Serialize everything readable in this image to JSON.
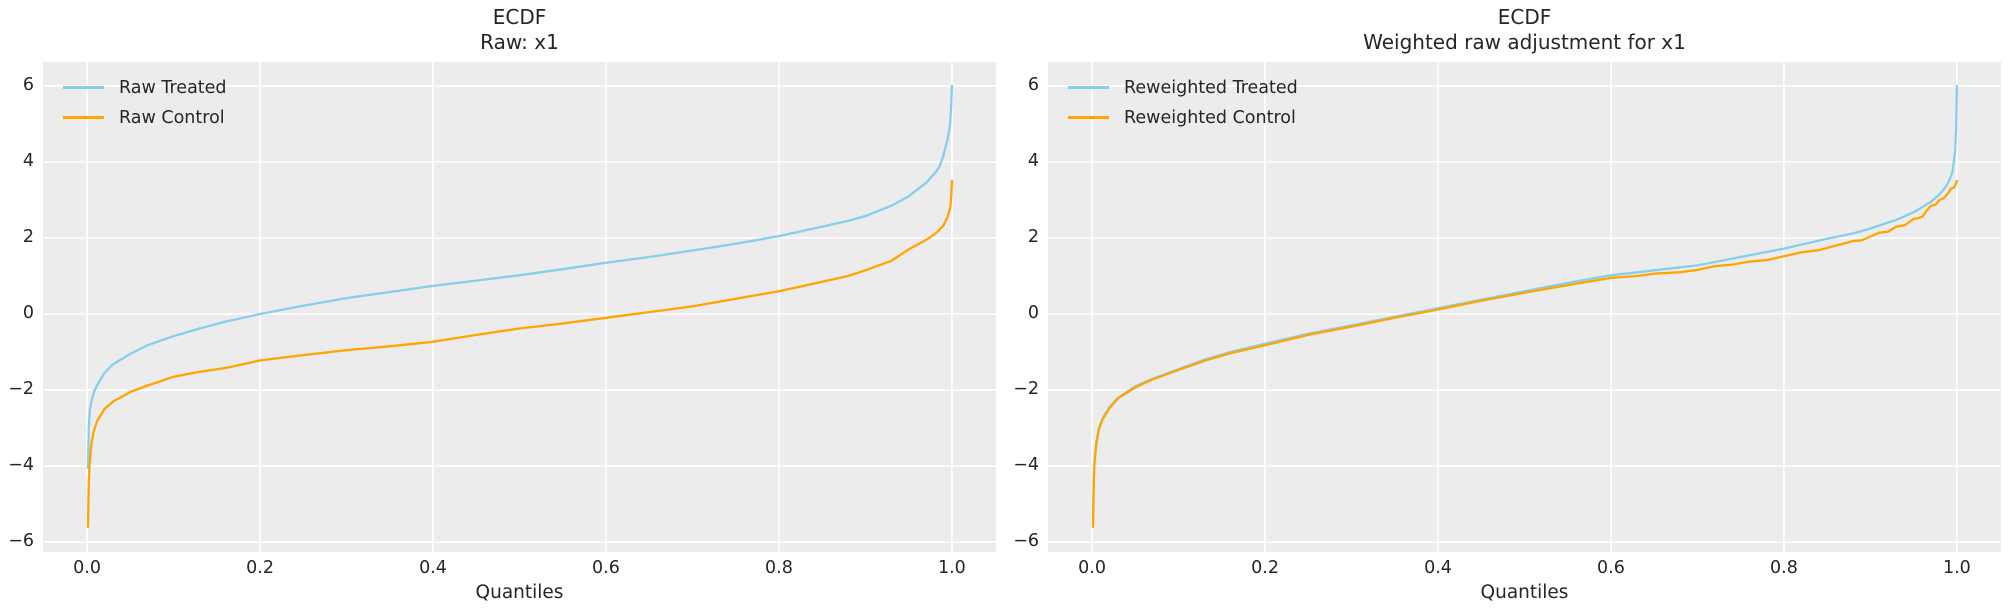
{
  "figure": {
    "background": "#ffffff",
    "plot_background": "#ececec",
    "grid_color": "#ffffff",
    "text_color": "#262626"
  },
  "chart_data": [
    {
      "type": "line",
      "title": "ECDF",
      "subtitle": "Raw: x1",
      "xlabel": "Quantiles",
      "xlim": [
        -0.051,
        1.051
      ],
      "ylim": [
        -6.26,
        6.63
      ],
      "grid": true,
      "xticks": [
        0.0,
        0.2,
        0.4,
        0.6,
        0.8,
        1.0
      ],
      "xtick_labels": [
        "0.0",
        "0.2",
        "0.4",
        "0.6",
        "0.8",
        "1.0"
      ],
      "yticks": [
        -6,
        -4,
        -2,
        0,
        2,
        4,
        6
      ],
      "ytick_labels": [
        "−6",
        "−4",
        "−2",
        "0",
        "2",
        "4",
        "6"
      ],
      "legend": {
        "position": "upper-left",
        "frame": false,
        "entries": [
          {
            "label": "Raw Treated",
            "color": "#87CEEB"
          },
          {
            "label": "Raw Control",
            "color": "#FFA500"
          }
        ]
      },
      "series": [
        {
          "name": "Raw Treated",
          "color": "#87CEEB",
          "points": [
            [
              0.001,
              -4.05
            ],
            [
              0.002,
              -3.0
            ],
            [
              0.003,
              -2.55
            ],
            [
              0.005,
              -2.3
            ],
            [
              0.008,
              -2.05
            ],
            [
              0.012,
              -1.85
            ],
            [
              0.02,
              -1.55
            ],
            [
              0.03,
              -1.32
            ],
            [
              0.05,
              -1.05
            ],
            [
              0.07,
              -0.82
            ],
            [
              0.1,
              -0.58
            ],
            [
              0.13,
              -0.38
            ],
            [
              0.16,
              -0.2
            ],
            [
              0.2,
              0.0
            ],
            [
              0.25,
              0.22
            ],
            [
              0.3,
              0.42
            ],
            [
              0.35,
              0.58
            ],
            [
              0.4,
              0.74
            ],
            [
              0.45,
              0.88
            ],
            [
              0.5,
              1.02
            ],
            [
              0.55,
              1.18
            ],
            [
              0.6,
              1.35
            ],
            [
              0.65,
              1.5
            ],
            [
              0.7,
              1.67
            ],
            [
              0.75,
              1.85
            ],
            [
              0.8,
              2.05
            ],
            [
              0.85,
              2.3
            ],
            [
              0.88,
              2.45
            ],
            [
              0.9,
              2.58
            ],
            [
              0.93,
              2.85
            ],
            [
              0.95,
              3.1
            ],
            [
              0.97,
              3.45
            ],
            [
              0.98,
              3.7
            ],
            [
              0.985,
              3.85
            ],
            [
              0.99,
              4.15
            ],
            [
              0.995,
              4.6
            ],
            [
              0.998,
              5.0
            ],
            [
              0.999,
              5.4
            ],
            [
              1.0,
              6.0
            ]
          ]
        },
        {
          "name": "Raw Control",
          "color": "#FFA500",
          "points": [
            [
              0.001,
              -5.6
            ],
            [
              0.002,
              -4.4
            ],
            [
              0.003,
              -3.9
            ],
            [
              0.005,
              -3.4
            ],
            [
              0.008,
              -3.05
            ],
            [
              0.012,
              -2.8
            ],
            [
              0.02,
              -2.5
            ],
            [
              0.03,
              -2.3
            ],
            [
              0.05,
              -2.05
            ],
            [
              0.07,
              -1.88
            ],
            [
              0.1,
              -1.65
            ],
            [
              0.13,
              -1.52
            ],
            [
              0.16,
              -1.42
            ],
            [
              0.2,
              -1.22
            ],
            [
              0.25,
              -1.08
            ],
            [
              0.3,
              -0.95
            ],
            [
              0.35,
              -0.85
            ],
            [
              0.4,
              -0.73
            ],
            [
              0.45,
              -0.55
            ],
            [
              0.5,
              -0.38
            ],
            [
              0.55,
              -0.25
            ],
            [
              0.6,
              -0.1
            ],
            [
              0.65,
              0.05
            ],
            [
              0.7,
              0.2
            ],
            [
              0.75,
              0.4
            ],
            [
              0.8,
              0.6
            ],
            [
              0.85,
              0.85
            ],
            [
              0.88,
              1.0
            ],
            [
              0.9,
              1.15
            ],
            [
              0.93,
              1.4
            ],
            [
              0.95,
              1.7
            ],
            [
              0.97,
              1.95
            ],
            [
              0.98,
              2.1
            ],
            [
              0.985,
              2.2
            ],
            [
              0.99,
              2.32
            ],
            [
              0.995,
              2.55
            ],
            [
              0.998,
              2.8
            ],
            [
              0.999,
              3.0
            ],
            [
              1.0,
              3.5
            ]
          ]
        }
      ]
    },
    {
      "type": "line",
      "title": "ECDF",
      "subtitle": "Weighted raw adjustment for x1",
      "xlabel": "Quantiles",
      "xlim": [
        -0.051,
        1.051
      ],
      "ylim": [
        -6.26,
        6.63
      ],
      "grid": true,
      "xticks": [
        0.0,
        0.2,
        0.4,
        0.6,
        0.8,
        1.0
      ],
      "xtick_labels": [
        "0.0",
        "0.2",
        "0.4",
        "0.6",
        "0.8",
        "1.0"
      ],
      "yticks": [
        -6,
        -4,
        -2,
        0,
        2,
        4,
        6
      ],
      "ytick_labels": [
        "−6",
        "−4",
        "−2",
        "0",
        "2",
        "4",
        "6"
      ],
      "legend": {
        "position": "upper-left",
        "frame": false,
        "entries": [
          {
            "label": "Reweighted Treated",
            "color": "#87CEEB"
          },
          {
            "label": "Reweighted Control",
            "color": "#FFA500"
          }
        ]
      },
      "series": [
        {
          "name": "Reweighted Treated",
          "color": "#87CEEB",
          "points": [
            [
              0.001,
              -5.55
            ],
            [
              0.002,
              -4.3
            ],
            [
              0.003,
              -3.8
            ],
            [
              0.005,
              -3.35
            ],
            [
              0.008,
              -3.0
            ],
            [
              0.012,
              -2.75
            ],
            [
              0.02,
              -2.45
            ],
            [
              0.03,
              -2.2
            ],
            [
              0.05,
              -1.9
            ],
            [
              0.07,
              -1.7
            ],
            [
              0.1,
              -1.45
            ],
            [
              0.13,
              -1.2
            ],
            [
              0.16,
              -1.0
            ],
            [
              0.2,
              -0.78
            ],
            [
              0.25,
              -0.52
            ],
            [
              0.3,
              -0.3
            ],
            [
              0.35,
              -0.07
            ],
            [
              0.4,
              0.15
            ],
            [
              0.45,
              0.38
            ],
            [
              0.5,
              0.6
            ],
            [
              0.55,
              0.82
            ],
            [
              0.6,
              1.02
            ],
            [
              0.65,
              1.15
            ],
            [
              0.7,
              1.28
            ],
            [
              0.75,
              1.5
            ],
            [
              0.8,
              1.72
            ],
            [
              0.85,
              1.98
            ],
            [
              0.88,
              2.12
            ],
            [
              0.9,
              2.25
            ],
            [
              0.93,
              2.48
            ],
            [
              0.95,
              2.68
            ],
            [
              0.97,
              2.95
            ],
            [
              0.98,
              3.15
            ],
            [
              0.985,
              3.28
            ],
            [
              0.99,
              3.45
            ],
            [
              0.995,
              3.75
            ],
            [
              0.998,
              4.3
            ],
            [
              0.999,
              4.8
            ],
            [
              1.0,
              6.0
            ]
          ]
        },
        {
          "name": "Reweighted Control",
          "color": "#FFA500",
          "points": [
            [
              0.001,
              -5.6
            ],
            [
              0.002,
              -4.35
            ],
            [
              0.003,
              -3.85
            ],
            [
              0.005,
              -3.4
            ],
            [
              0.008,
              -3.02
            ],
            [
              0.012,
              -2.78
            ],
            [
              0.02,
              -2.48
            ],
            [
              0.03,
              -2.22
            ],
            [
              0.05,
              -1.93
            ],
            [
              0.07,
              -1.72
            ],
            [
              0.1,
              -1.47
            ],
            [
              0.13,
              -1.23
            ],
            [
              0.16,
              -1.03
            ],
            [
              0.2,
              -0.82
            ],
            [
              0.25,
              -0.55
            ],
            [
              0.3,
              -0.33
            ],
            [
              0.35,
              -0.1
            ],
            [
              0.4,
              0.12
            ],
            [
              0.45,
              0.35
            ],
            [
              0.5,
              0.56
            ],
            [
              0.55,
              0.76
            ],
            [
              0.6,
              0.95
            ],
            [
              0.63,
              1.0
            ],
            [
              0.65,
              1.06
            ],
            [
              0.68,
              1.1
            ],
            [
              0.7,
              1.16
            ],
            [
              0.72,
              1.26
            ],
            [
              0.74,
              1.3
            ],
            [
              0.76,
              1.38
            ],
            [
              0.78,
              1.42
            ],
            [
              0.8,
              1.52
            ],
            [
              0.82,
              1.62
            ],
            [
              0.84,
              1.68
            ],
            [
              0.86,
              1.8
            ],
            [
              0.88,
              1.92
            ],
            [
              0.89,
              1.94
            ],
            [
              0.9,
              2.04
            ],
            [
              0.91,
              2.14
            ],
            [
              0.92,
              2.16
            ],
            [
              0.93,
              2.3
            ],
            [
              0.94,
              2.34
            ],
            [
              0.95,
              2.5
            ],
            [
              0.955,
              2.52
            ],
            [
              0.96,
              2.56
            ],
            [
              0.965,
              2.72
            ],
            [
              0.97,
              2.85
            ],
            [
              0.975,
              2.87
            ],
            [
              0.98,
              3.0
            ],
            [
              0.985,
              3.05
            ],
            [
              0.99,
              3.18
            ],
            [
              0.993,
              3.3
            ],
            [
              0.996,
              3.32
            ],
            [
              0.998,
              3.38
            ],
            [
              1.0,
              3.5
            ]
          ]
        }
      ]
    }
  ]
}
